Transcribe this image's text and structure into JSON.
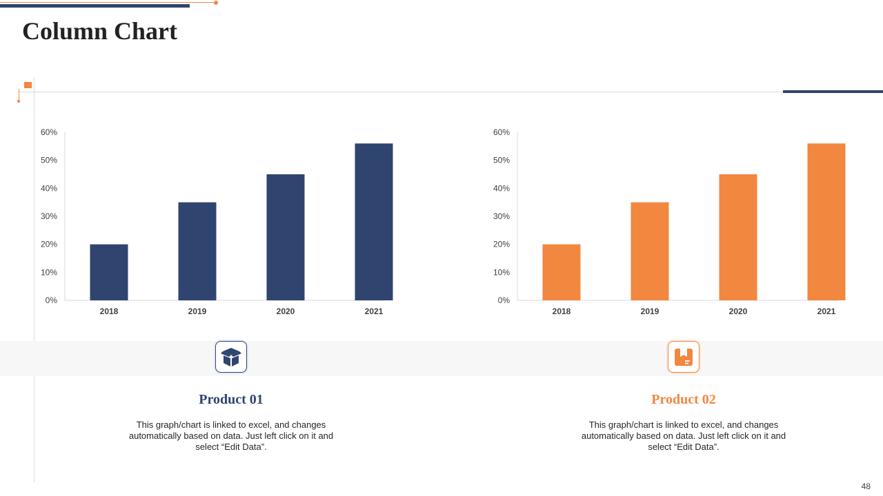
{
  "page": {
    "title": "Column Chart",
    "page_number": "48"
  },
  "colors": {
    "navy": "#2f4570",
    "orange": "#f2873f",
    "axis": "#d9d9d9",
    "tick_text": "#404040"
  },
  "chart_data": [
    {
      "type": "bar",
      "title": "",
      "xlabel": "",
      "ylabel": "",
      "categories": [
        "2018",
        "2019",
        "2020",
        "2021"
      ],
      "values": [
        20,
        35,
        45,
        56
      ],
      "ylim": [
        0,
        60
      ],
      "yticks": [
        "0%",
        "10%",
        "20%",
        "30%",
        "40%",
        "50%",
        "60%"
      ],
      "grid": false,
      "legend": "none",
      "color": "#2f4570"
    },
    {
      "type": "bar",
      "title": "",
      "xlabel": "",
      "ylabel": "",
      "categories": [
        "2018",
        "2019",
        "2020",
        "2021"
      ],
      "values": [
        20,
        35,
        45,
        56
      ],
      "ylim": [
        0,
        60
      ],
      "yticks": [
        "0%",
        "10%",
        "20%",
        "30%",
        "40%",
        "50%",
        "60%"
      ],
      "grid": false,
      "legend": "none",
      "color": "#f2873f"
    }
  ],
  "products": [
    {
      "icon": "open-box-icon",
      "title": "Product 01",
      "description": "This graph/chart is linked to excel,  and changes automatically based on data. Just left click on it and select “Edit Data”.",
      "color": "#2f4570"
    },
    {
      "icon": "package-icon",
      "title": "Product 02",
      "description": "This graph/chart is linked to excel,  and changes automatically based on data. Just left click on it and select “Edit Data”.",
      "color": "#f2873f"
    }
  ]
}
